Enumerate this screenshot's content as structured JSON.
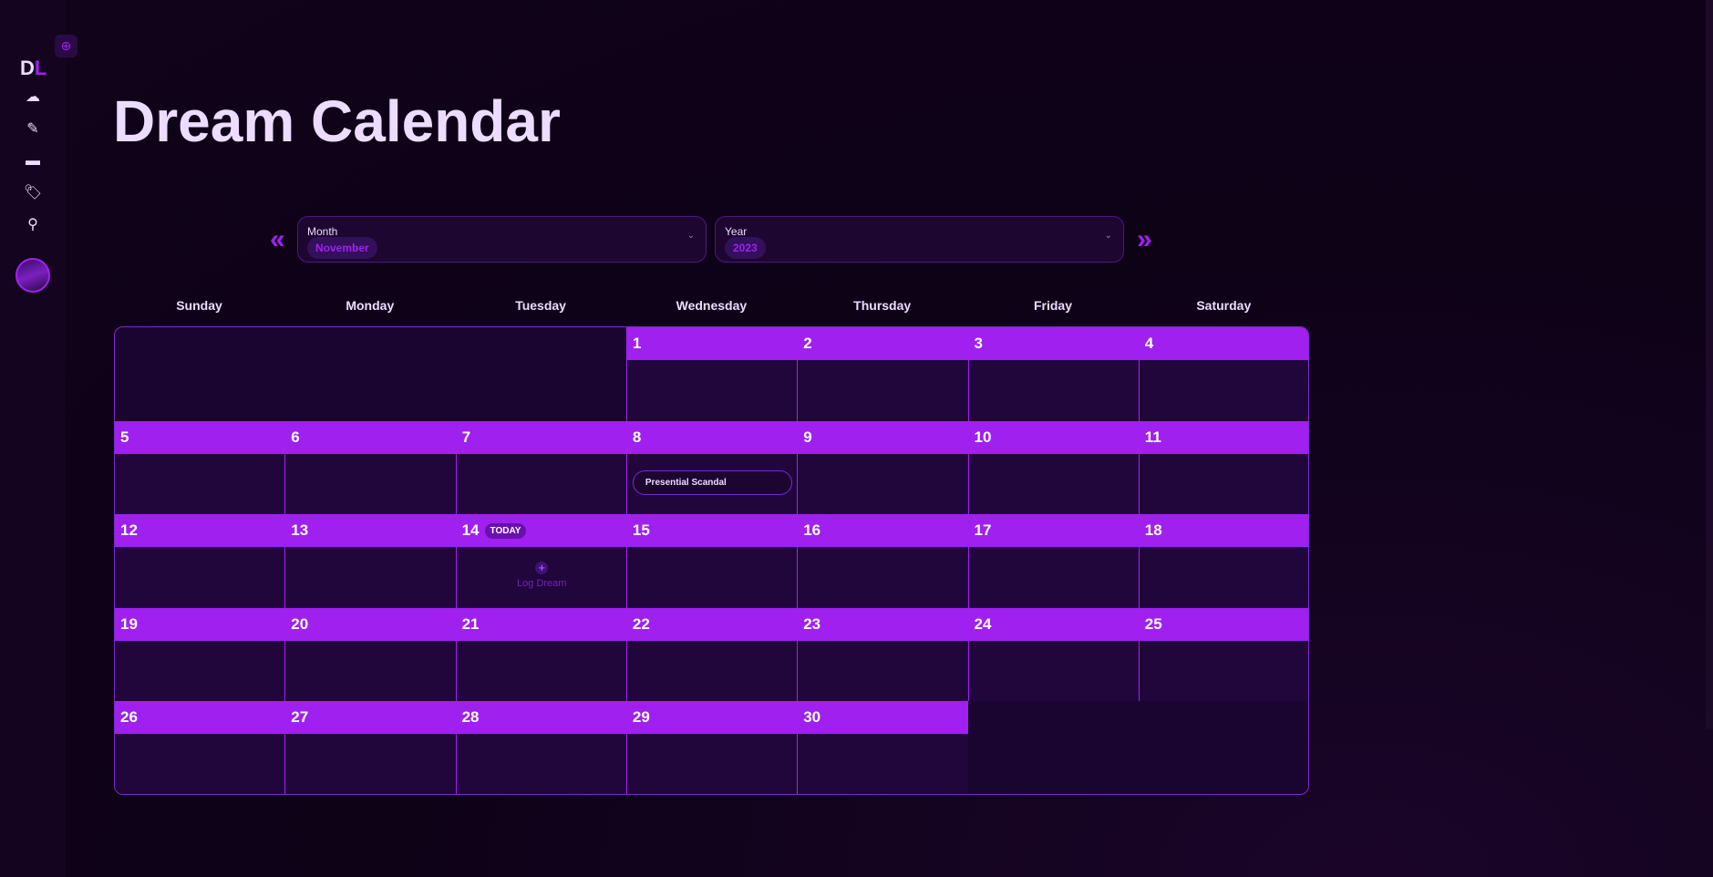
{
  "sidebar": {
    "logo_d": "D",
    "logo_l": "L",
    "top_button_icon": "plus-circle-icon",
    "items": [
      {
        "icon": "cloud-icon",
        "glyph": "☁"
      },
      {
        "icon": "pencil-icon",
        "glyph": "✎"
      },
      {
        "icon": "calendar-icon",
        "glyph": "▬"
      },
      {
        "icon": "tag-icon",
        "glyph": "🏷"
      },
      {
        "icon": "search-icon",
        "glyph": "⚲"
      }
    ]
  },
  "page": {
    "title": "Dream Calendar"
  },
  "selectors": {
    "prev": "«",
    "next": "»",
    "month_label": "Month",
    "month_value": "November",
    "year_label": "Year",
    "year_value": "2023",
    "dropdown": "⌄"
  },
  "weekdays": [
    "Sunday",
    "Monday",
    "Tuesday",
    "Wednesday",
    "Thursday",
    "Friday",
    "Saturday"
  ],
  "calendar": {
    "first_weekday": 3,
    "days": 30,
    "today": 14,
    "today_label": "TODAY",
    "log_label": "Log Dream",
    "log_icon": "+",
    "events": [
      {
        "day": 8,
        "title": "Presential Scandal"
      }
    ]
  },
  "colors": {
    "accent": "#a020f0",
    "background": "#10031a"
  }
}
